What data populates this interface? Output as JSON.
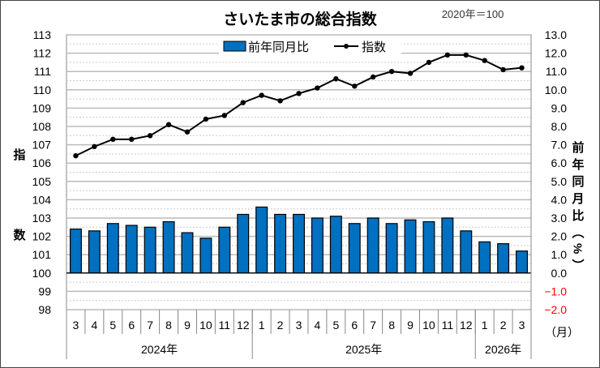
{
  "chart_data": {
    "type": "bar+line",
    "title": "さいたま市の総合指数",
    "base_note": "2020年＝100",
    "left_axis": {
      "label": "指数",
      "ylim": [
        98,
        113
      ],
      "ticks": [
        113,
        112,
        111,
        110,
        109,
        108,
        107,
        106,
        105,
        104,
        103,
        102,
        101,
        100,
        99,
        98
      ]
    },
    "right_axis": {
      "label": "前年同月比（%）",
      "ylim": [
        -2.0,
        13.0
      ],
      "ticks": [
        "13.0",
        "12.0",
        "11.0",
        "10.0",
        "9.0",
        "8.0",
        "7.0",
        "6.0",
        "5.0",
        "4.0",
        "3.0",
        "2.0",
        "1.0",
        "0.0",
        "−1.0",
        "−2.0"
      ],
      "negative_color": "#ff0000"
    },
    "x_unit_label": "（月）",
    "categories": [
      "3",
      "4",
      "5",
      "6",
      "7",
      "8",
      "9",
      "10",
      "11",
      "12",
      "1",
      "2",
      "3",
      "4",
      "5",
      "6",
      "7",
      "8",
      "9",
      "10",
      "11",
      "12",
      "1",
      "2",
      "3"
    ],
    "year_groups": [
      {
        "label": "2024年",
        "count": 10
      },
      {
        "label": "2025年",
        "count": 12
      },
      {
        "label": "2026年",
        "count": 3
      }
    ],
    "grid": true,
    "legend_position": "top-left",
    "series": [
      {
        "name": "前年同月比",
        "type": "bar",
        "axis": "right",
        "color": "#0070c0",
        "values": [
          2.4,
          2.3,
          2.7,
          2.6,
          2.5,
          2.8,
          2.2,
          1.9,
          2.5,
          3.2,
          3.6,
          3.2,
          3.2,
          3.0,
          3.1,
          2.7,
          3.0,
          2.7,
          2.9,
          2.8,
          3.0,
          2.3,
          1.7,
          1.6,
          1.2
        ]
      },
      {
        "name": "指数",
        "type": "line",
        "axis": "left",
        "color": "#000000",
        "values": [
          106.4,
          106.9,
          107.3,
          107.3,
          107.5,
          108.1,
          107.7,
          108.4,
          108.6,
          109.3,
          109.7,
          109.4,
          109.8,
          110.1,
          110.6,
          110.2,
          110.7,
          111.0,
          110.9,
          111.5,
          111.9,
          111.9,
          111.6,
          111.1,
          111.2
        ]
      }
    ]
  }
}
